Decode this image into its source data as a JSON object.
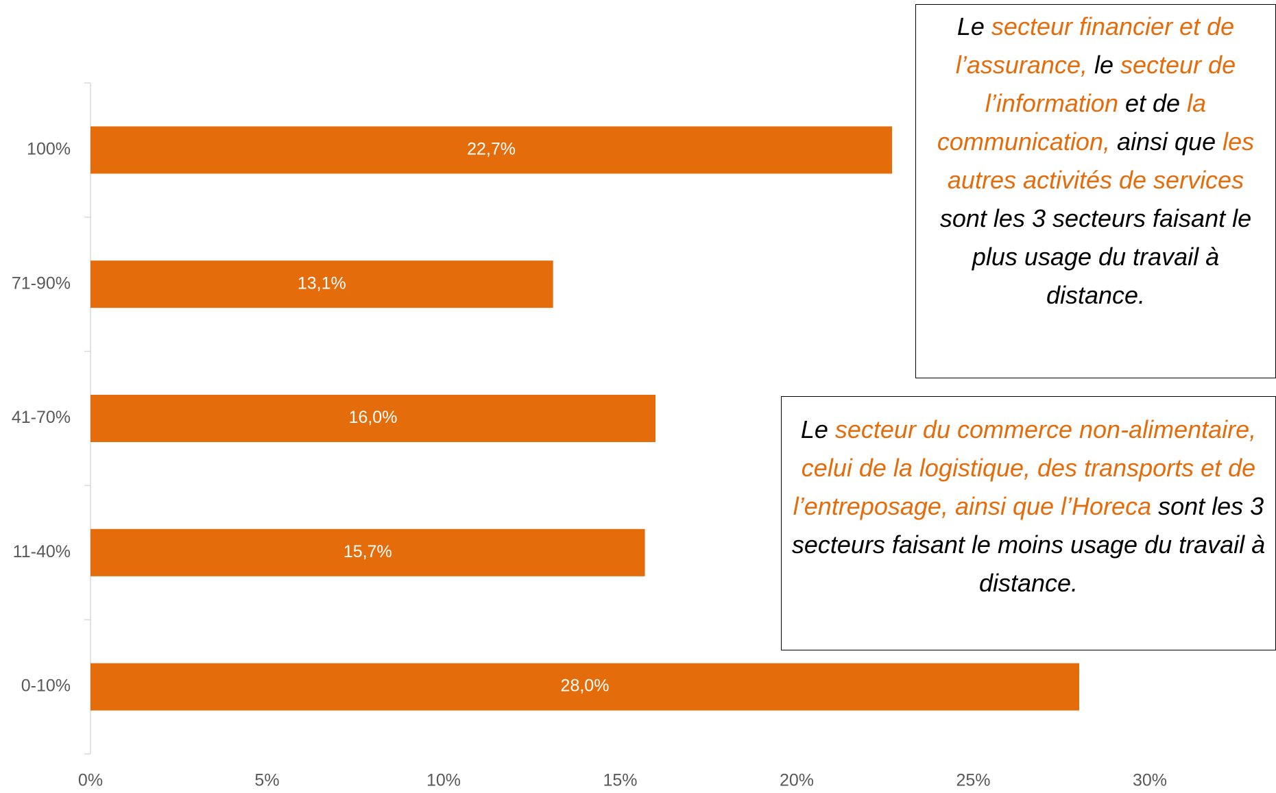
{
  "chart_data": {
    "type": "bar",
    "orientation": "horizontal",
    "categories": [
      "100%",
      "71-90%",
      "41-70%",
      "11-40%",
      "0-10%"
    ],
    "values": [
      22.7,
      13.1,
      16.0,
      15.7,
      28.0
    ],
    "value_labels": [
      "22,7%",
      "13,1%",
      "16,0%",
      "15,7%",
      "28,0%"
    ],
    "color": "#e46c0a",
    "xlim": [
      0,
      30
    ],
    "xticks": [
      {
        "value": 0,
        "label": "0%"
      },
      {
        "value": 5,
        "label": "5%"
      },
      {
        "value": 10,
        "label": "10%"
      },
      {
        "value": 15,
        "label": "15%"
      },
      {
        "value": 20,
        "label": "20%"
      },
      {
        "value": 25,
        "label": "25%"
      },
      {
        "value": 30,
        "label": "30%"
      }
    ],
    "grid": false,
    "annotations": [
      {
        "segments": [
          {
            "text": "Le ",
            "color": "#000000"
          },
          {
            "text": "secteur financier et de l’assurance,",
            "color": "#e46c0a"
          },
          {
            "text": " le ",
            "color": "#000000"
          },
          {
            "text": "secteur de l’information",
            "color": "#e46c0a"
          },
          {
            "text": " et de ",
            "color": "#000000"
          },
          {
            "text": "la communication,",
            "color": "#e46c0a"
          },
          {
            "text": " ainsi que ",
            "color": "#000000"
          },
          {
            "text": "les autres activités de services",
            "color": "#e46c0a"
          },
          {
            "text": " sont les 3 secteurs faisant le plus usage du travail à distance.",
            "color": "#000000"
          }
        ]
      },
      {
        "segments": [
          {
            "text": "Le ",
            "color": "#000000"
          },
          {
            "text": "secteur du commerce non-alimentaire, celui de la logistique, des transports et de l’entreposage, ainsi que l’Horeca",
            "color": "#e46c0a"
          },
          {
            "text": " sont les 3 secteurs faisant le moins usage du travail à distance.",
            "color": "#000000"
          }
        ]
      }
    ]
  }
}
